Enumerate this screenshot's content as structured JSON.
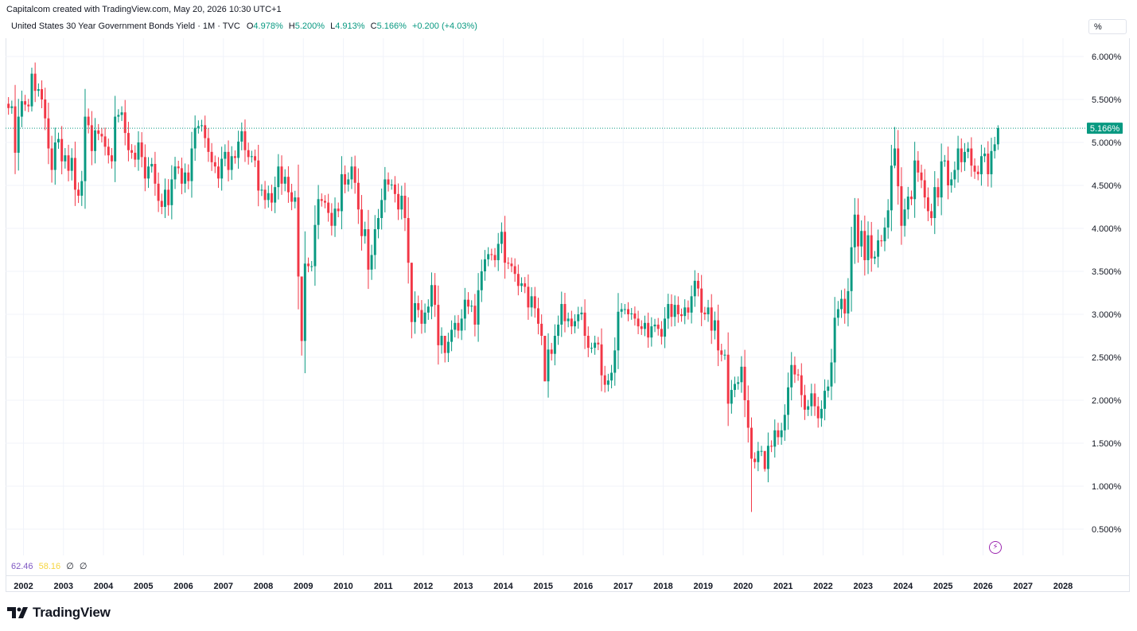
{
  "header": {
    "caption": "Capitalcom created with TradingView.com, May 20, 2026 10:30 UTC+1",
    "symbol": "United States 30 Year Government Bonds Yield · 1M · TVC",
    "o_label": "O",
    "o_value": "4.978%",
    "h_label": "H",
    "h_value": "5.200%",
    "l_label": "L",
    "l_value": "4.913%",
    "c_label": "C",
    "c_value": "5.166%",
    "change": "+0.200 (+4.03%)",
    "scale_button": "%"
  },
  "indicator": {
    "value_a": "62.46",
    "value_b": "58.16",
    "value_c": "∅",
    "value_d": "∅"
  },
  "price_tag": "5.166%",
  "logo": {
    "text": "TradingView",
    "icon": "tradingview-logo-icon"
  },
  "lightning_icon": "lightning-icon",
  "colors": {
    "up": "#089981",
    "down": "#f23645",
    "grid": "#f0f3fa",
    "last_line": "#089981"
  },
  "chart_data": {
    "type": "candlestick",
    "title": "United States 30 Year Government Bonds Yield · 1M · TVC",
    "ylim": [
      0.2,
      6.35
    ],
    "y_ticks": [
      "6.000%",
      "5.500%",
      "5.000%",
      "4.500%",
      "4.000%",
      "3.500%",
      "3.000%",
      "2.500%",
      "2.000%",
      "1.500%",
      "1.000%",
      "0.500%"
    ],
    "x_ticks": [
      "2002",
      "2003",
      "2004",
      "2005",
      "2006",
      "2007",
      "2008",
      "2009",
      "2010",
      "2011",
      "2012",
      "2013",
      "2014",
      "2015",
      "2016",
      "2017",
      "2018",
      "2019",
      "2020",
      "2021",
      "2022",
      "2023",
      "2024",
      "2025",
      "2026",
      "2027",
      "2028"
    ],
    "last_value": 5.166,
    "grid": true,
    "monthly_closes": [
      [
        "2001-07",
        5.45
      ],
      [
        "2001-08",
        5.4
      ],
      [
        "2001-09",
        5.42
      ],
      [
        "2001-10",
        4.88
      ],
      [
        "2001-11",
        5.3
      ],
      [
        "2001-12",
        5.48
      ],
      [
        "2002-01",
        5.44
      ],
      [
        "2002-02",
        5.42
      ],
      [
        "2002-03",
        5.8
      ],
      [
        "2002-04",
        5.6
      ],
      [
        "2002-05",
        5.62
      ],
      [
        "2002-06",
        5.5
      ],
      [
        "2002-07",
        5.28
      ],
      [
        "2002-08",
        4.93
      ],
      [
        "2002-09",
        4.68
      ],
      [
        "2002-10",
        5.0
      ],
      [
        "2002-11",
        5.04
      ],
      [
        "2002-12",
        4.78
      ],
      [
        "2003-01",
        4.85
      ],
      [
        "2003-02",
        4.67
      ],
      [
        "2003-03",
        4.82
      ],
      [
        "2003-04",
        4.45
      ],
      [
        "2003-05",
        4.38
      ],
      [
        "2003-06",
        4.55
      ],
      [
        "2003-07",
        5.3
      ],
      [
        "2003-08",
        5.2
      ],
      [
        "2003-09",
        4.9
      ],
      [
        "2003-10",
        5.14
      ],
      [
        "2003-11",
        5.1
      ],
      [
        "2003-12",
        5.07
      ],
      [
        "2004-01",
        4.95
      ],
      [
        "2004-02",
        4.85
      ],
      [
        "2004-03",
        4.78
      ],
      [
        "2004-04",
        5.3
      ],
      [
        "2004-05",
        5.32
      ],
      [
        "2004-06",
        5.35
      ],
      [
        "2004-07",
        5.11
      ],
      [
        "2004-08",
        4.91
      ],
      [
        "2004-09",
        4.88
      ],
      [
        "2004-10",
        4.8
      ],
      [
        "2004-11",
        5.0
      ],
      [
        "2004-12",
        4.83
      ],
      [
        "2005-01",
        4.58
      ],
      [
        "2005-02",
        4.72
      ],
      [
        "2005-03",
        4.75
      ],
      [
        "2005-04",
        4.52
      ],
      [
        "2005-05",
        4.32
      ],
      [
        "2005-06",
        4.25
      ],
      [
        "2005-07",
        4.45
      ],
      [
        "2005-08",
        4.27
      ],
      [
        "2005-09",
        4.57
      ],
      [
        "2005-10",
        4.72
      ],
      [
        "2005-11",
        4.7
      ],
      [
        "2005-12",
        4.52
      ],
      [
        "2006-01",
        4.65
      ],
      [
        "2006-02",
        4.55
      ],
      [
        "2006-03",
        4.93
      ],
      [
        "2006-04",
        5.17
      ],
      [
        "2006-05",
        5.19
      ],
      [
        "2006-06",
        5.2
      ],
      [
        "2006-07",
        5.05
      ],
      [
        "2006-08",
        4.89
      ],
      [
        "2006-09",
        4.77
      ],
      [
        "2006-10",
        4.72
      ],
      [
        "2006-11",
        4.58
      ],
      [
        "2006-12",
        4.81
      ],
      [
        "2007-01",
        4.89
      ],
      [
        "2007-02",
        4.68
      ],
      [
        "2007-03",
        4.84
      ],
      [
        "2007-04",
        4.82
      ],
      [
        "2007-05",
        5.01
      ],
      [
        "2007-06",
        5.13
      ],
      [
        "2007-07",
        4.91
      ],
      [
        "2007-08",
        4.83
      ],
      [
        "2007-09",
        4.84
      ],
      [
        "2007-10",
        4.79
      ],
      [
        "2007-11",
        4.44
      ],
      [
        "2007-12",
        4.45
      ],
      [
        "2008-01",
        4.33
      ],
      [
        "2008-02",
        4.41
      ],
      [
        "2008-03",
        4.3
      ],
      [
        "2008-04",
        4.48
      ],
      [
        "2008-05",
        4.72
      ],
      [
        "2008-06",
        4.52
      ],
      [
        "2008-07",
        4.6
      ],
      [
        "2008-08",
        4.42
      ],
      [
        "2008-09",
        4.31
      ],
      [
        "2008-10",
        4.36
      ],
      [
        "2008-11",
        3.44
      ],
      [
        "2008-12",
        2.69
      ],
      [
        "2009-01",
        3.59
      ],
      [
        "2009-02",
        3.56
      ],
      [
        "2009-03",
        3.56
      ],
      [
        "2009-04",
        4.04
      ],
      [
        "2009-05",
        4.34
      ],
      [
        "2009-06",
        4.32
      ],
      [
        "2009-07",
        4.3
      ],
      [
        "2009-08",
        4.18
      ],
      [
        "2009-09",
        4.03
      ],
      [
        "2009-10",
        4.23
      ],
      [
        "2009-11",
        4.2
      ],
      [
        "2009-12",
        4.63
      ],
      [
        "2010-01",
        4.51
      ],
      [
        "2010-02",
        4.57
      ],
      [
        "2010-03",
        4.72
      ],
      [
        "2010-04",
        4.53
      ],
      [
        "2010-05",
        4.22
      ],
      [
        "2010-06",
        3.91
      ],
      [
        "2010-07",
        3.99
      ],
      [
        "2010-08",
        3.52
      ],
      [
        "2010-09",
        3.69
      ],
      [
        "2010-10",
        3.99
      ],
      [
        "2010-11",
        4.12
      ],
      [
        "2010-12",
        4.33
      ],
      [
        "2011-01",
        4.57
      ],
      [
        "2011-02",
        4.51
      ],
      [
        "2011-03",
        4.51
      ],
      [
        "2011-04",
        4.4
      ],
      [
        "2011-05",
        4.22
      ],
      [
        "2011-06",
        4.38
      ],
      [
        "2011-07",
        4.12
      ],
      [
        "2011-08",
        3.6
      ],
      [
        "2011-09",
        2.91
      ],
      [
        "2011-10",
        3.13
      ],
      [
        "2011-11",
        3.05
      ],
      [
        "2011-12",
        2.89
      ],
      [
        "2012-01",
        3.02
      ],
      [
        "2012-02",
        3.09
      ],
      [
        "2012-03",
        3.34
      ],
      [
        "2012-04",
        3.11
      ],
      [
        "2012-05",
        2.64
      ],
      [
        "2012-06",
        2.75
      ],
      [
        "2012-07",
        2.55
      ],
      [
        "2012-08",
        2.68
      ],
      [
        "2012-09",
        2.82
      ],
      [
        "2012-10",
        2.9
      ],
      [
        "2012-11",
        2.81
      ],
      [
        "2012-12",
        2.95
      ],
      [
        "2013-01",
        3.17
      ],
      [
        "2013-02",
        3.09
      ],
      [
        "2013-03",
        3.1
      ],
      [
        "2013-04",
        2.88
      ],
      [
        "2013-05",
        3.28
      ],
      [
        "2013-06",
        3.5
      ],
      [
        "2013-07",
        3.64
      ],
      [
        "2013-08",
        3.7
      ],
      [
        "2013-09",
        3.69
      ],
      [
        "2013-10",
        3.63
      ],
      [
        "2013-11",
        3.82
      ],
      [
        "2013-12",
        3.96
      ],
      [
        "2014-01",
        3.6
      ],
      [
        "2014-02",
        3.59
      ],
      [
        "2014-03",
        3.56
      ],
      [
        "2014-04",
        3.47
      ],
      [
        "2014-05",
        3.33
      ],
      [
        "2014-06",
        3.36
      ],
      [
        "2014-07",
        3.32
      ],
      [
        "2014-08",
        3.08
      ],
      [
        "2014-09",
        3.21
      ],
      [
        "2014-10",
        3.07
      ],
      [
        "2014-11",
        2.89
      ],
      [
        "2014-12",
        2.75
      ],
      [
        "2015-01",
        2.22
      ],
      [
        "2015-02",
        2.59
      ],
      [
        "2015-03",
        2.54
      ],
      [
        "2015-04",
        2.75
      ],
      [
        "2015-05",
        2.88
      ],
      [
        "2015-06",
        3.12
      ],
      [
        "2015-07",
        2.92
      ],
      [
        "2015-08",
        2.95
      ],
      [
        "2015-09",
        2.86
      ],
      [
        "2015-10",
        2.92
      ],
      [
        "2015-11",
        3.0
      ],
      [
        "2015-12",
        3.02
      ],
      [
        "2016-01",
        2.75
      ],
      [
        "2016-02",
        2.61
      ],
      [
        "2016-03",
        2.61
      ],
      [
        "2016-04",
        2.67
      ],
      [
        "2016-05",
        2.65
      ],
      [
        "2016-06",
        2.29
      ],
      [
        "2016-07",
        2.18
      ],
      [
        "2016-08",
        2.23
      ],
      [
        "2016-09",
        2.32
      ],
      [
        "2016-10",
        2.58
      ],
      [
        "2016-11",
        3.03
      ],
      [
        "2016-12",
        3.06
      ],
      [
        "2017-01",
        3.06
      ],
      [
        "2017-02",
        3.0
      ],
      [
        "2017-03",
        3.01
      ],
      [
        "2017-04",
        2.95
      ],
      [
        "2017-05",
        2.86
      ],
      [
        "2017-06",
        2.83
      ],
      [
        "2017-07",
        2.9
      ],
      [
        "2017-08",
        2.73
      ],
      [
        "2017-09",
        2.86
      ],
      [
        "2017-10",
        2.88
      ],
      [
        "2017-11",
        2.83
      ],
      [
        "2017-12",
        2.74
      ],
      [
        "2018-01",
        2.95
      ],
      [
        "2018-02",
        3.12
      ],
      [
        "2018-03",
        2.97
      ],
      [
        "2018-04",
        3.11
      ],
      [
        "2018-05",
        3.0
      ],
      [
        "2018-06",
        2.98
      ],
      [
        "2018-07",
        3.08
      ],
      [
        "2018-08",
        3.02
      ],
      [
        "2018-09",
        3.21
      ],
      [
        "2018-10",
        3.39
      ],
      [
        "2018-11",
        3.3
      ],
      [
        "2018-12",
        3.02
      ],
      [
        "2019-01",
        3.0
      ],
      [
        "2019-02",
        3.08
      ],
      [
        "2019-03",
        2.81
      ],
      [
        "2019-04",
        2.93
      ],
      [
        "2019-05",
        2.58
      ],
      [
        "2019-06",
        2.53
      ],
      [
        "2019-07",
        2.53
      ],
      [
        "2019-08",
        1.96
      ],
      [
        "2019-09",
        2.12
      ],
      [
        "2019-10",
        2.19
      ],
      [
        "2019-11",
        2.21
      ],
      [
        "2019-12",
        2.39
      ],
      [
        "2020-01",
        2.0
      ],
      [
        "2020-02",
        1.68
      ],
      [
        "2020-03",
        1.32
      ],
      [
        "2020-04",
        1.28
      ],
      [
        "2020-05",
        1.41
      ],
      [
        "2020-06",
        1.41
      ],
      [
        "2020-07",
        1.2
      ],
      [
        "2020-08",
        1.47
      ],
      [
        "2020-09",
        1.46
      ],
      [
        "2020-10",
        1.65
      ],
      [
        "2020-11",
        1.57
      ],
      [
        "2020-12",
        1.65
      ],
      [
        "2021-01",
        1.83
      ],
      [
        "2021-02",
        2.15
      ],
      [
        "2021-03",
        2.41
      ],
      [
        "2021-04",
        2.3
      ],
      [
        "2021-05",
        2.29
      ],
      [
        "2021-06",
        2.06
      ],
      [
        "2021-07",
        1.89
      ],
      [
        "2021-08",
        1.93
      ],
      [
        "2021-09",
        2.08
      ],
      [
        "2021-10",
        1.93
      ],
      [
        "2021-11",
        1.79
      ],
      [
        "2021-12",
        1.9
      ],
      [
        "2022-01",
        2.11
      ],
      [
        "2022-02",
        2.16
      ],
      [
        "2022-03",
        2.44
      ],
      [
        "2022-04",
        2.96
      ],
      [
        "2022-05",
        3.06
      ],
      [
        "2022-06",
        3.18
      ],
      [
        "2022-07",
        3.01
      ],
      [
        "2022-08",
        3.27
      ],
      [
        "2022-09",
        3.78
      ],
      [
        "2022-10",
        4.16
      ],
      [
        "2022-11",
        3.79
      ],
      [
        "2022-12",
        3.97
      ],
      [
        "2023-01",
        3.63
      ],
      [
        "2023-02",
        3.92
      ],
      [
        "2023-03",
        3.65
      ],
      [
        "2023-04",
        3.67
      ],
      [
        "2023-05",
        3.86
      ],
      [
        "2023-06",
        3.85
      ],
      [
        "2023-07",
        4.01
      ],
      [
        "2023-08",
        4.21
      ],
      [
        "2023-09",
        4.73
      ],
      [
        "2023-10",
        4.93
      ],
      [
        "2023-11",
        4.49
      ],
      [
        "2023-12",
        4.03
      ],
      [
        "2024-01",
        4.22
      ],
      [
        "2024-02",
        4.37
      ],
      [
        "2024-03",
        4.34
      ],
      [
        "2024-04",
        4.79
      ],
      [
        "2024-05",
        4.65
      ],
      [
        "2024-06",
        4.56
      ],
      [
        "2024-07",
        4.36
      ],
      [
        "2024-08",
        4.2
      ],
      [
        "2024-09",
        4.12
      ],
      [
        "2024-10",
        4.48
      ],
      [
        "2024-11",
        4.36
      ],
      [
        "2024-12",
        4.78
      ],
      [
        "2025-01",
        4.79
      ],
      [
        "2025-02",
        4.5
      ],
      [
        "2025-03",
        4.57
      ],
      [
        "2025-04",
        4.68
      ],
      [
        "2025-05",
        4.93
      ],
      [
        "2025-06",
        4.77
      ],
      [
        "2025-07",
        4.89
      ],
      [
        "2025-08",
        4.93
      ],
      [
        "2025-09",
        4.73
      ],
      [
        "2025-10",
        4.66
      ],
      [
        "2025-11",
        4.63
      ],
      [
        "2025-12",
        4.84
      ],
      [
        "2026-01",
        4.87
      ],
      [
        "2026-02",
        4.63
      ],
      [
        "2026-03",
        4.9
      ],
      [
        "2026-04",
        4.978
      ],
      [
        "2026-05",
        5.166
      ]
    ],
    "extremes": [
      [
        "2002-03",
        5.87,
        5.36
      ],
      [
        "2008-12",
        3.0,
        2.52
      ],
      [
        "2011-09",
        3.6,
        2.72
      ],
      [
        "2012-07",
        2.7,
        2.44
      ],
      [
        "2015-01",
        2.75,
        2.22
      ],
      [
        "2016-07",
        2.4,
        2.09
      ],
      [
        "2020-03",
        1.8,
        0.7
      ],
      [
        "2020-07",
        1.35,
        1.17
      ],
      [
        "2023-10",
        5.18,
        4.7
      ],
      [
        "2026-05",
        5.2,
        4.913
      ]
    ]
  }
}
